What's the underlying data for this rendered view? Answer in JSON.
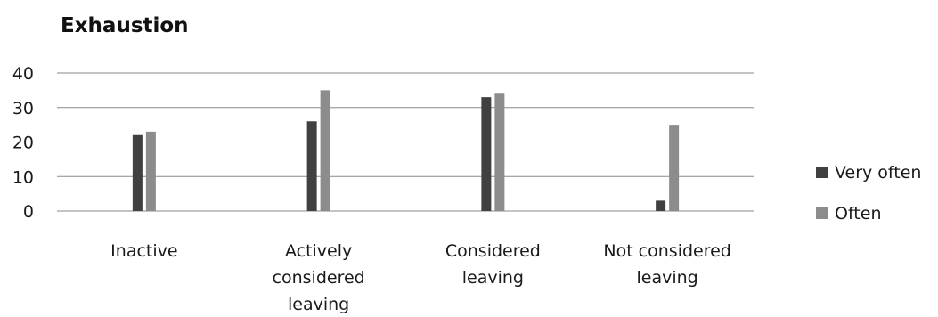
{
  "chart_data": {
    "type": "bar",
    "title": "Exhaustion",
    "xlabel": "",
    "ylabel": "",
    "ylim": [
      0,
      40
    ],
    "yticks": [
      0,
      10,
      20,
      30,
      40
    ],
    "grid": true,
    "legend_position": "right",
    "categories": [
      [
        "Inactive"
      ],
      [
        "Actively",
        "considered",
        "leaving"
      ],
      [
        "Considered",
        "leaving"
      ],
      [
        "Not considered",
        "leaving"
      ]
    ],
    "series": [
      {
        "name": "Very often",
        "color": "#404040",
        "values": [
          22,
          26,
          33,
          3
        ]
      },
      {
        "name": "Often",
        "color": "#8c8c8c",
        "values": [
          23,
          35,
          34,
          25
        ]
      }
    ]
  }
}
